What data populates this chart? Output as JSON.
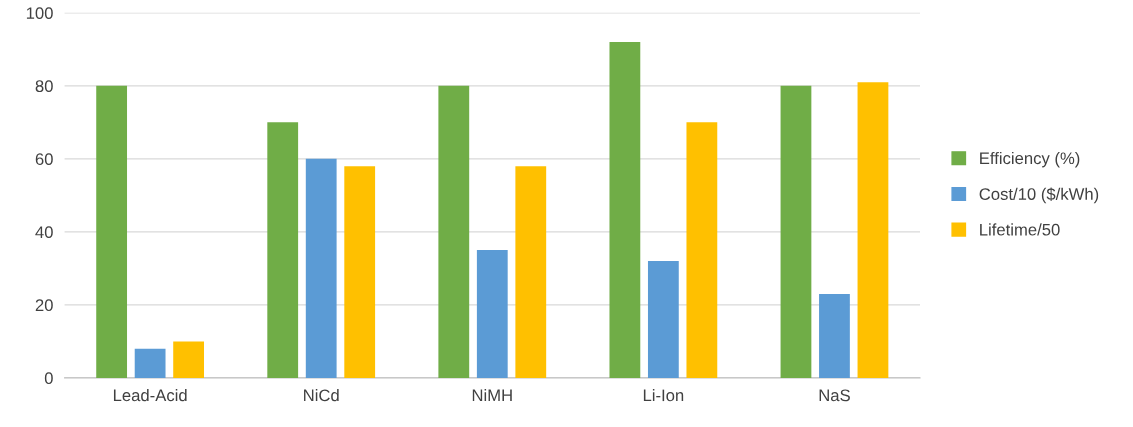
{
  "chart_data": {
    "type": "bar",
    "categories": [
      "Lead-Acid",
      "NiCd",
      "NiMH",
      "Li-Ion",
      "NaS"
    ],
    "series": [
      {
        "name": "Efficiency (%)",
        "color": "#70ad47",
        "values": [
          80,
          70,
          80,
          92,
          80
        ]
      },
      {
        "name": "Cost/10 ($/kWh)",
        "color": "#5b9bd5",
        "values": [
          8,
          60,
          35,
          32,
          23
        ]
      },
      {
        "name": "Lifetime/50",
        "color": "#ffc000",
        "values": [
          10,
          58,
          58,
          70,
          81
        ]
      }
    ],
    "ylim": [
      0,
      100
    ],
    "yticks": [
      0,
      20,
      40,
      60,
      80,
      100
    ],
    "grid": "y",
    "legend": "right"
  }
}
